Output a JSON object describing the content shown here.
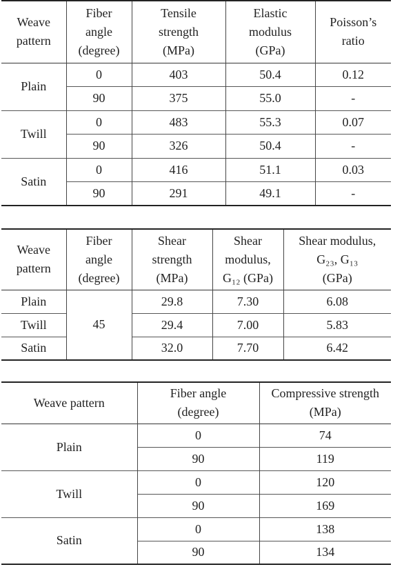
{
  "tables": [
    {
      "header": [
        [
          "Weave",
          "pattern"
        ],
        [
          "Fiber",
          "angle",
          "(degree)"
        ],
        [
          "Tensile",
          "strength",
          "(MPa)"
        ],
        [
          "Elastic",
          "modulus",
          "(GPa)"
        ],
        [
          "Poisson’s",
          "ratio"
        ]
      ],
      "groups": [
        {
          "label": "Plain",
          "rows": [
            [
              "0",
              "403",
              "50.4",
              "0.12"
            ],
            [
              "90",
              "375",
              "55.0",
              "-"
            ]
          ]
        },
        {
          "label": "Twill",
          "rows": [
            [
              "0",
              "483",
              "55.3",
              "0.07"
            ],
            [
              "90",
              "326",
              "50.4",
              "-"
            ]
          ]
        },
        {
          "label": "Satin",
          "rows": [
            [
              "0",
              "416",
              "51.1",
              "0.03"
            ],
            [
              "90",
              "291",
              "49.1",
              "-"
            ]
          ]
        }
      ]
    },
    {
      "header": [
        [
          "Weave",
          "pattern"
        ],
        [
          "Fiber",
          "angle",
          "(degree)"
        ],
        [
          "Shear",
          "strength",
          "(MPa)"
        ],
        [
          "Shear",
          "modulus,",
          "G₁₂ (GPa)"
        ],
        [
          "Shear modulus,",
          "G₂₃, G₁₃",
          "(GPa)"
        ]
      ],
      "fiber_angle": "45",
      "rows": [
        [
          "Plain",
          "29.8",
          "7.30",
          "6.08"
        ],
        [
          "Twill",
          "29.4",
          "7.00",
          "5.83"
        ],
        [
          "Satin",
          "32.0",
          "7.70",
          "6.42"
        ]
      ]
    },
    {
      "header": [
        [
          "Weave pattern"
        ],
        [
          "Fiber angle",
          "(degree)"
        ],
        [
          "Compressive strength",
          "(MPa)"
        ]
      ],
      "groups": [
        {
          "label": "Plain",
          "rows": [
            [
              "0",
              "74"
            ],
            [
              "90",
              "119"
            ]
          ]
        },
        {
          "label": "Twill",
          "rows": [
            [
              "0",
              "120"
            ],
            [
              "90",
              "169"
            ]
          ]
        },
        {
          "label": "Satin",
          "rows": [
            [
              "0",
              "138"
            ],
            [
              "90",
              "134"
            ]
          ]
        }
      ]
    }
  ]
}
